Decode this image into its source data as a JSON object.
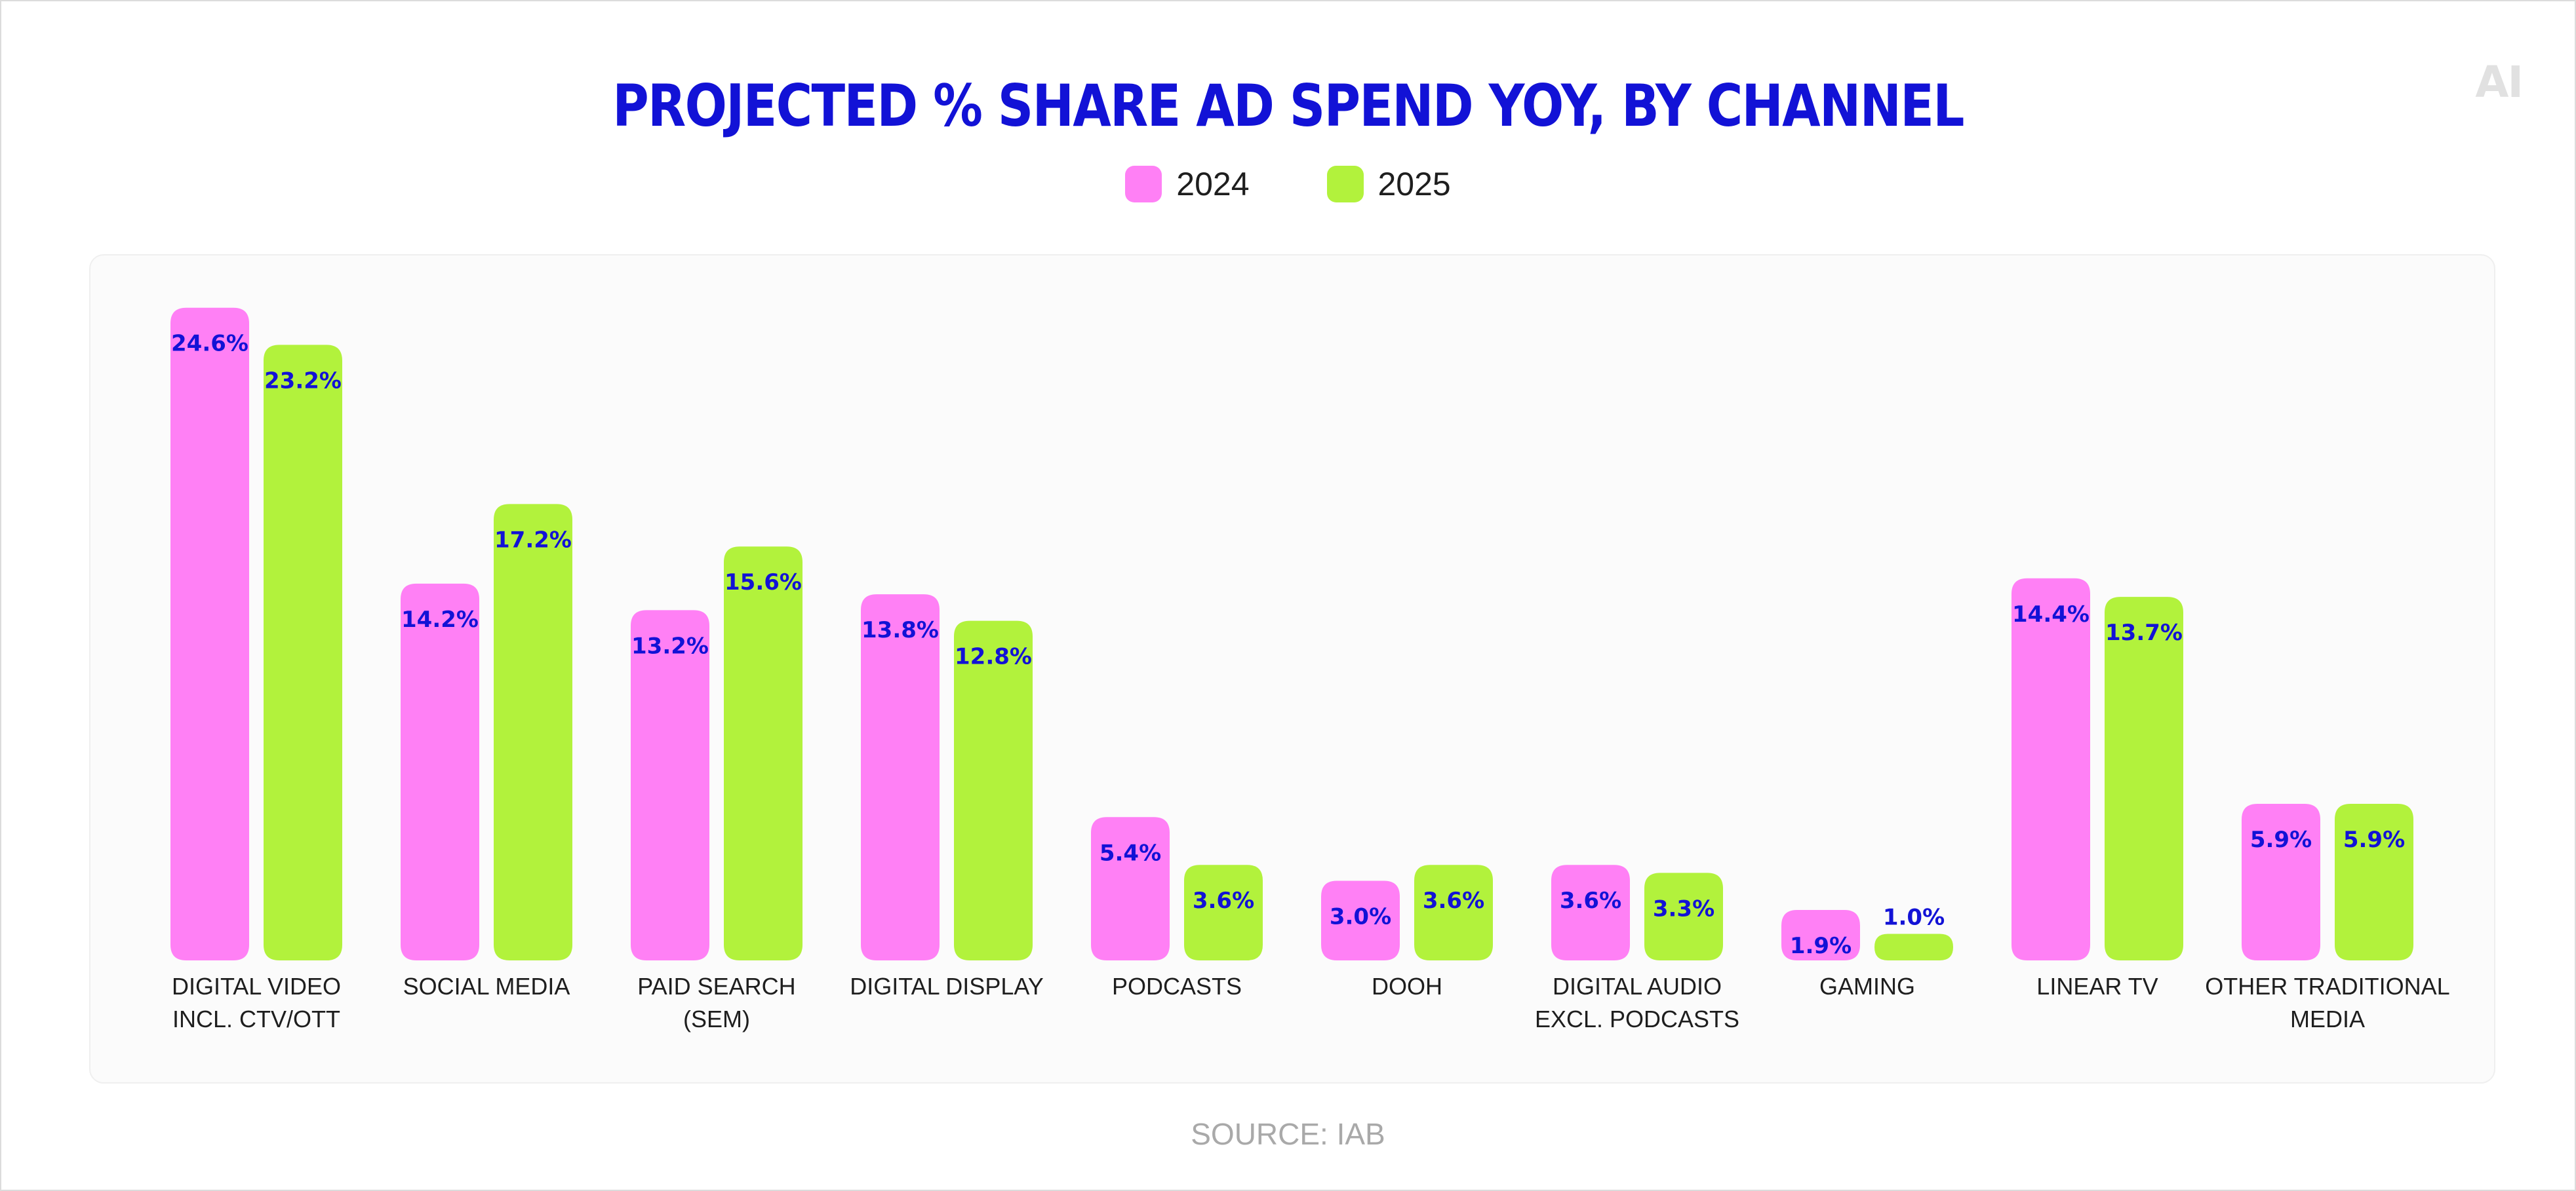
{
  "logo": "AI",
  "source": "SOURCE: IAB",
  "colors": {
    "series_2024": "#ff80f5",
    "series_2025": "#b2f23c",
    "label": "#1212d6"
  },
  "chart_data": {
    "type": "bar",
    "title": "PROJECTED % SHARE AD SPEND YOY, BY CHANNEL",
    "xlabel": "",
    "ylabel": "",
    "ylim": [
      0,
      25
    ],
    "grid": false,
    "legend_position": "top-center",
    "categories": [
      [
        "DIGITAL VIDEO",
        "INCL. CTV/OTT"
      ],
      [
        "SOCIAL MEDIA"
      ],
      [
        "PAID SEARCH",
        "(SEM)"
      ],
      [
        "DIGITAL DISPLAY"
      ],
      [
        "PODCASTS"
      ],
      [
        "DOOH"
      ],
      [
        "DIGITAL AUDIO",
        "EXCL. PODCASTS"
      ],
      [
        "GAMING"
      ],
      [
        "LINEAR TV"
      ],
      [
        "OTHER TRADITIONAL",
        "MEDIA"
      ]
    ],
    "series": [
      {
        "name": "2024",
        "color": "#ff80f5",
        "values": [
          24.6,
          14.2,
          13.2,
          13.8,
          5.4,
          3.0,
          3.6,
          1.9,
          14.4,
          5.9
        ]
      },
      {
        "name": "2025",
        "color": "#b2f23c",
        "values": [
          23.2,
          17.2,
          15.6,
          12.8,
          3.6,
          3.6,
          3.3,
          1.0,
          13.7,
          5.9
        ]
      }
    ]
  }
}
